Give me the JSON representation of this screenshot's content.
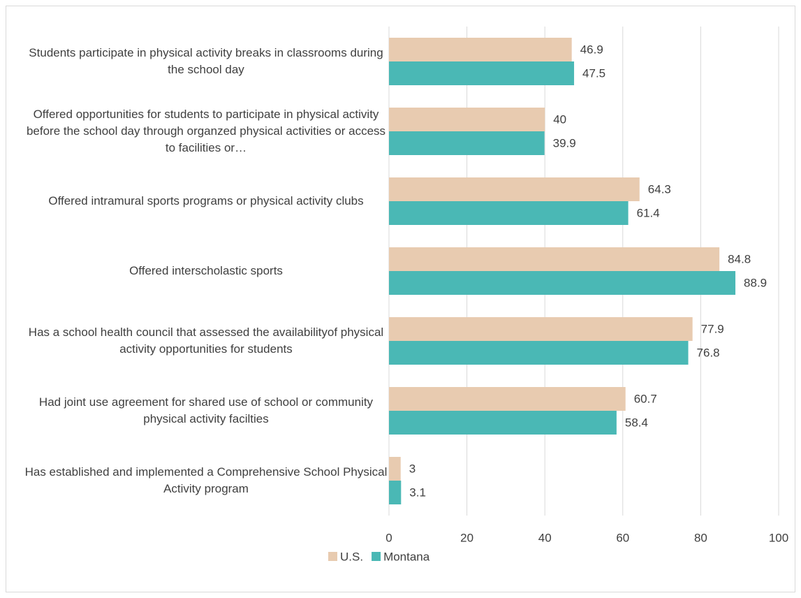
{
  "chart_data": {
    "type": "barh",
    "categories": [
      "Students participate in physical activity breaks in classrooms during the school day",
      "Offered opportunities for students to participate in physical activity before the school day through organzed physical activities or access to facilities or…",
      "Offered intramural sports programs or physical activity clubs",
      "Offered interscholastic sports",
      "Has a school health council that assessed the availabilityof physical activity opportunities for students",
      "Had joint use agreement for shared use of school or community physical activity facilties",
      "Has established and implemented a Comprehensive School Physical Activity program"
    ],
    "series": [
      {
        "name": "U.S.",
        "color": "#e8cbb0",
        "values": [
          46.9,
          40,
          64.3,
          84.8,
          77.9,
          60.7,
          3
        ]
      },
      {
        "name": "Montana",
        "color": "#4ab8b5",
        "values": [
          47.5,
          39.9,
          61.4,
          88.9,
          76.8,
          58.4,
          3.1
        ]
      }
    ],
    "xlim": [
      0,
      100
    ],
    "xticks": [
      0,
      20,
      40,
      60,
      80,
      100
    ],
    "grid": true,
    "legend": "bottom"
  }
}
